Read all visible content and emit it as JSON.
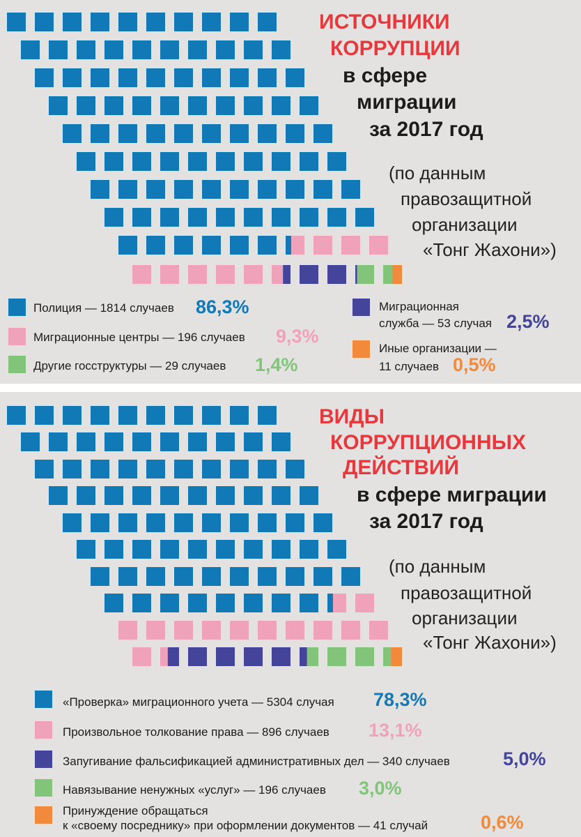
{
  "colors": {
    "police": "#1279b7",
    "pink": "#f1a2bb",
    "purple": "#43449a",
    "green": "#82c57a",
    "orange": "#f18a3a",
    "title_red": "#e8383d"
  },
  "chart_data": [
    {
      "type": "waffle",
      "title": "ИСТОЧНИКИ КОРРУПЦИИ в сфере миграции за 2017 год",
      "title_lines": [
        "ИСТОЧНИКИ",
        "КОРРУПЦИИ",
        "в сфере",
        "миграции",
        "за 2017 год"
      ],
      "source_lines": [
        "(по данным",
        "правозащитной",
        "организации",
        "«Тонг Жахони»)"
      ],
      "series": [
        {
          "name": "Полиция",
          "label": "Полиция — 1814 случаев",
          "cases": 1814,
          "percent": 86.3,
          "percent_label": "86,3%",
          "color_key": "police"
        },
        {
          "name": "Миграционные центры",
          "label": "Миграционные центры — 196 случаев",
          "cases": 196,
          "percent": 9.3,
          "percent_label": "9,3%",
          "color_key": "pink"
        },
        {
          "name": "Другие госструктуры",
          "label": "Другие госструктуры — 29 случаев",
          "cases": 29,
          "percent": 1.4,
          "percent_label": "1,4%",
          "color_key": "green"
        },
        {
          "name": "Миграционная служба",
          "label_lines": [
            "Миграционная",
            "служба — 53 случая"
          ],
          "cases": 53,
          "percent": 2.5,
          "percent_label": "2,5%",
          "color_key": "purple"
        },
        {
          "name": "Иные организации",
          "label_lines": [
            "Иные организации —",
            "11 случаев"
          ],
          "cases": 11,
          "percent": 0.5,
          "percent_label": "0,5%",
          "color_key": "orange"
        }
      ]
    },
    {
      "type": "waffle",
      "title": "ВИДЫ КОРРУПЦИОННЫХ ДЕЙСТВИЙ в сфере миграции за 2017 год",
      "title_lines": [
        "ВИДЫ",
        "КОРРУПЦИОННЫХ",
        "ДЕЙСТВИЙ",
        "в сфере миграции",
        "за 2017 год"
      ],
      "source_lines": [
        "(по данным",
        "правозащитной",
        "организации",
        "«Тонг Жахони»)"
      ],
      "series": [
        {
          "name": "«Проверка» миграционного учета",
          "label": "«Проверка» миграционного учета — 5304 случая",
          "cases": 5304,
          "percent": 78.3,
          "percent_label": "78,3%",
          "color_key": "police"
        },
        {
          "name": "Произвольное толкование права",
          "label": "Произвольное толкование права — 896 случаев",
          "cases": 896,
          "percent": 13.1,
          "percent_label": "13,1%",
          "color_key": "pink"
        },
        {
          "name": "Запугивание фальсификацией административных дел",
          "label": "Запугивание фальсификацией административных дел — 340 случаев",
          "cases": 340,
          "percent": 5.0,
          "percent_label": "5,0%",
          "color_key": "purple"
        },
        {
          "name": "Навязывание ненужных «услуг»",
          "label": "Навязывание ненужных «услуг» — 196 случаев",
          "cases": 196,
          "percent": 3.0,
          "percent_label": "3,0%",
          "color_key": "green"
        },
        {
          "name": "Принуждение обращаться к «своему посреднику» при оформлении документов",
          "label_lines": [
            "Принуждение обращаться",
            "к «своему посреднику» при оформлении документов — 41 случай"
          ],
          "cases": 41,
          "percent": 0.6,
          "percent_label": "0,6%",
          "color_key": "orange"
        }
      ]
    }
  ]
}
